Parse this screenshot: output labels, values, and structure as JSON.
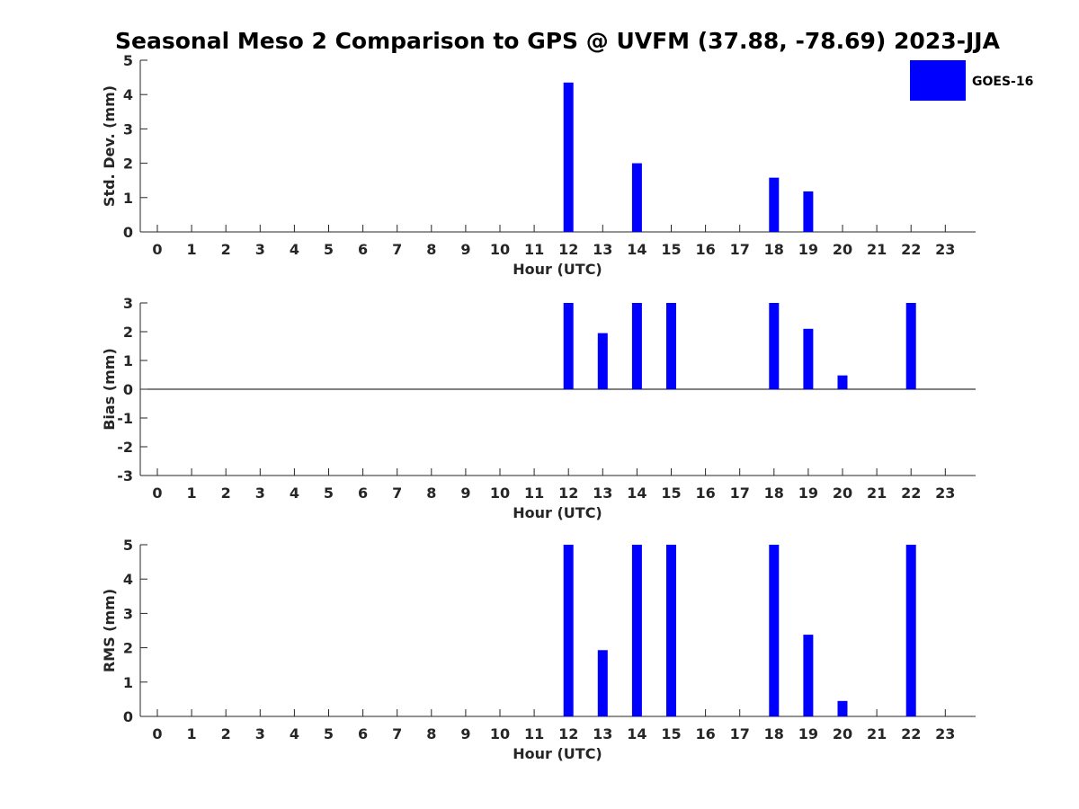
{
  "title": "Seasonal Meso 2 Comparison to GPS @ UVFM (37.88, -78.69) 2023-JJA",
  "legend": {
    "label": "GOES-16",
    "color": "#0000ff",
    "position": "top-right"
  },
  "chart_data": [
    {
      "type": "bar",
      "categories": [
        "0",
        "1",
        "2",
        "3",
        "4",
        "5",
        "6",
        "7",
        "8",
        "9",
        "10",
        "11",
        "12",
        "13",
        "14",
        "15",
        "16",
        "17",
        "18",
        "19",
        "20",
        "21",
        "22",
        "23"
      ],
      "series": [
        {
          "name": "GOES-16",
          "color": "#0000ff",
          "values": [
            null,
            null,
            null,
            null,
            null,
            null,
            null,
            null,
            null,
            null,
            null,
            null,
            4.35,
            null,
            2.0,
            null,
            null,
            null,
            1.58,
            1.18,
            null,
            null,
            null,
            null
          ]
        }
      ],
      "xlabel": "Hour (UTC)",
      "ylabel": "Std. Dev. (mm)",
      "ylim": [
        0,
        5
      ],
      "yticks": [
        "0",
        "1",
        "2",
        "3",
        "4",
        "5"
      ],
      "grid": false
    },
    {
      "type": "bar",
      "categories": [
        "0",
        "1",
        "2",
        "3",
        "4",
        "5",
        "6",
        "7",
        "8",
        "9",
        "10",
        "11",
        "12",
        "13",
        "14",
        "15",
        "16",
        "17",
        "18",
        "19",
        "20",
        "21",
        "22",
        "23"
      ],
      "series": [
        {
          "name": "GOES-16",
          "color": "#0000ff",
          "values": [
            null,
            null,
            null,
            null,
            null,
            null,
            null,
            null,
            null,
            null,
            null,
            null,
            3.0,
            1.95,
            3.0,
            3.0,
            null,
            null,
            3.0,
            2.1,
            0.48,
            null,
            3.0,
            null
          ]
        }
      ],
      "xlabel": "Hour (UTC)",
      "ylabel": "Bias (mm)",
      "ylim": [
        -3,
        3
      ],
      "yticks": [
        "-3",
        "-2",
        "-1",
        "0",
        "1",
        "2",
        "3"
      ],
      "zero_line": true,
      "grid": false
    },
    {
      "type": "bar",
      "categories": [
        "0",
        "1",
        "2",
        "3",
        "4",
        "5",
        "6",
        "7",
        "8",
        "9",
        "10",
        "11",
        "12",
        "13",
        "14",
        "15",
        "16",
        "17",
        "18",
        "19",
        "20",
        "21",
        "22",
        "23"
      ],
      "series": [
        {
          "name": "GOES-16",
          "color": "#0000ff",
          "values": [
            null,
            null,
            null,
            null,
            null,
            null,
            null,
            null,
            null,
            null,
            null,
            null,
            5.0,
            1.93,
            5.0,
            5.0,
            null,
            null,
            5.0,
            2.38,
            0.45,
            null,
            5.0,
            null
          ]
        }
      ],
      "xlabel": "Hour (UTC)",
      "ylabel": "RMS (mm)",
      "ylim": [
        0,
        5
      ],
      "yticks": [
        "0",
        "1",
        "2",
        "3",
        "4",
        "5"
      ],
      "grid": false
    }
  ]
}
